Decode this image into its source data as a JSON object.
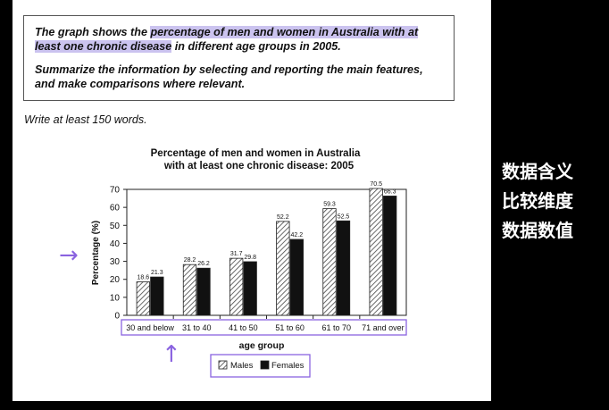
{
  "prompt": {
    "line1_pre": "The graph shows the ",
    "line1_highlight": "percentage of men and women in Australia with at least one chronic disease",
    "line1_post": " in different age groups in 2005.",
    "line2": "Summarize the information by selecting and reporting the main features, and make comparisons where relevant."
  },
  "write_line": "Write at least 150 words.",
  "side_notes": [
    "数据含义",
    "比较维度",
    "数据数值"
  ],
  "colors": {
    "highlight": "#cbc3ef",
    "annotation": "#8a63e0",
    "females_bar": "#111111",
    "males_bar": "hatched"
  },
  "icons": {
    "right_arrow": "right-arrow-icon",
    "up_arrow": "up-arrow-icon"
  },
  "chart_data": {
    "type": "bar",
    "title_line1": "Percentage of men and women in Australia",
    "title_line2": "with at least one chronic disease: 2005",
    "xlabel": "age group",
    "ylabel": "Percentage (%)",
    "ylim": [
      0,
      70
    ],
    "yticks": [
      0,
      10,
      20,
      30,
      40,
      50,
      60,
      70
    ],
    "categories": [
      "30 and below",
      "31 to 40",
      "41 to 50",
      "51 to 60",
      "61 to 70",
      "71 and over"
    ],
    "series": [
      {
        "name": "Males",
        "values": [
          18.6,
          28.2,
          31.7,
          52.2,
          59.3,
          70.5
        ]
      },
      {
        "name": "Females",
        "values": [
          21.3,
          26.2,
          29.8,
          42.2,
          52.5,
          66.3
        ]
      }
    ],
    "grid": false,
    "legend_position": "bottom-center"
  }
}
